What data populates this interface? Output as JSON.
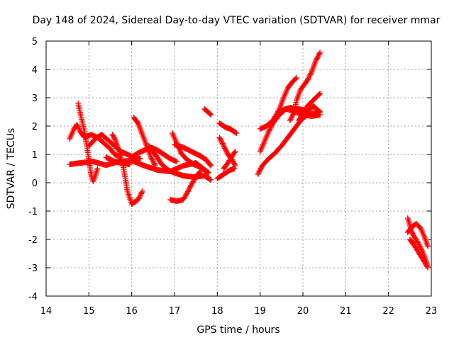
{
  "chart_data": {
    "type": "scatter",
    "title": "Day 148 of 2024, Sidereal Day-to-day VTEC variation (SDTVAR) for receiver mmar",
    "xlabel": "GPS time / hours",
    "ylabel": "SDTVAR / TECUs",
    "xlim": [
      14,
      23
    ],
    "ylim": [
      -4,
      5
    ],
    "xticks": [
      "14",
      "15",
      "16",
      "17",
      "18",
      "19",
      "20",
      "21",
      "22",
      "23"
    ],
    "yticks": [
      "-4",
      "-3",
      "-2",
      "-1",
      "0",
      "1",
      "2",
      "3",
      "4",
      "5"
    ],
    "grid": true,
    "marker": "+",
    "marker_color": "#ff0000",
    "series": [
      {
        "tracks": [
          [
            [
              14.55,
              0.65
            ],
            [
              14.8,
              0.7
            ],
            [
              15.1,
              0.75
            ],
            [
              15.4,
              0.62
            ],
            [
              15.7,
              0.75
            ],
            [
              16.0,
              0.78
            ],
            [
              16.3,
              0.6
            ],
            [
              16.6,
              0.45
            ],
            [
              16.9,
              0.4
            ],
            [
              17.2,
              0.6
            ],
            [
              17.5,
              0.7
            ],
            [
              17.8,
              0.35
            ]
          ],
          [
            [
              14.55,
              1.55
            ],
            [
              14.65,
              1.9
            ],
            [
              14.72,
              2.05
            ],
            [
              14.8,
              1.8
            ],
            [
              14.9,
              1.6
            ],
            [
              15.05,
              1.7
            ],
            [
              15.2,
              1.6
            ],
            [
              15.35,
              1.4
            ],
            [
              15.5,
              1.2
            ],
            [
              15.6,
              1.0
            ],
            [
              15.75,
              0.9
            ]
          ],
          [
            [
              14.75,
              2.8
            ],
            [
              14.82,
              2.3
            ],
            [
              14.9,
              1.8
            ],
            [
              15.0,
              0.8
            ],
            [
              15.05,
              0.3
            ],
            [
              15.1,
              0.05
            ],
            [
              15.15,
              0.25
            ],
            [
              15.2,
              0.5
            ]
          ],
          [
            [
              15.0,
              1.3
            ],
            [
              15.15,
              1.55
            ],
            [
              15.3,
              1.7
            ],
            [
              15.45,
              1.5
            ],
            [
              15.6,
              1.3
            ],
            [
              15.75,
              1.1
            ],
            [
              15.9,
              1.0
            ],
            [
              16.05,
              0.9
            ],
            [
              16.2,
              0.85
            ]
          ],
          [
            [
              15.55,
              1.7
            ],
            [
              15.62,
              1.5
            ],
            [
              15.7,
              1.15
            ],
            [
              15.8,
              0.6
            ],
            [
              15.9,
              -0.3
            ],
            [
              16.0,
              -0.75
            ],
            [
              16.15,
              -0.6
            ],
            [
              16.25,
              -0.3
            ]
          ],
          [
            [
              16.05,
              2.3
            ],
            [
              16.15,
              2.1
            ],
            [
              16.25,
              1.7
            ],
            [
              16.35,
              1.3
            ],
            [
              16.45,
              0.9
            ],
            [
              16.55,
              0.6
            ]
          ],
          [
            [
              16.0,
              0.9
            ],
            [
              16.15,
              1.05
            ],
            [
              16.3,
              1.15
            ],
            [
              16.45,
              1.25
            ],
            [
              16.6,
              1.15
            ],
            [
              16.75,
              1.0
            ],
            [
              16.9,
              0.85
            ],
            [
              17.05,
              0.75
            ]
          ],
          [
            [
              16.95,
              1.75
            ],
            [
              17.05,
              1.4
            ],
            [
              17.15,
              1.05
            ],
            [
              17.3,
              0.8
            ],
            [
              17.45,
              0.65
            ],
            [
              17.6,
              0.55
            ],
            [
              17.75,
              0.4
            ]
          ],
          [
            [
              16.9,
              -0.6
            ],
            [
              17.05,
              -0.65
            ],
            [
              17.2,
              -0.6
            ],
            [
              17.3,
              -0.35
            ],
            [
              17.4,
              -0.05
            ],
            [
              17.5,
              0.2
            ],
            [
              17.6,
              0.4
            ]
          ],
          [
            [
              17.0,
              1.35
            ],
            [
              17.2,
              1.25
            ],
            [
              17.4,
              1.1
            ],
            [
              17.6,
              0.95
            ],
            [
              17.75,
              0.8
            ],
            [
              17.85,
              0.6
            ]
          ],
          [
            [
              16.4,
              1.3
            ],
            [
              16.55,
              1.0
            ],
            [
              16.7,
              0.65
            ],
            [
              16.85,
              0.45
            ],
            [
              17.0,
              0.35
            ],
            [
              17.2,
              0.25
            ],
            [
              17.45,
              0.2
            ],
            [
              17.7,
              0.25
            ],
            [
              17.85,
              0.1
            ]
          ],
          [
            [
              15.4,
              0.9
            ],
            [
              15.6,
              0.75
            ],
            [
              15.8,
              0.68
            ],
            [
              15.95,
              0.65
            ]
          ],
          [
            [
              17.7,
              2.6
            ],
            [
              17.78,
              2.5
            ],
            [
              17.85,
              2.4
            ]
          ],
          [
            [
              18.0,
              0.15
            ],
            [
              18.15,
              0.3
            ],
            [
              18.3,
              0.45
            ],
            [
              18.4,
              0.5
            ]
          ],
          [
            [
              18.05,
              2.1
            ],
            [
              18.2,
              1.95
            ],
            [
              18.3,
              1.9
            ],
            [
              18.45,
              1.75
            ]
          ],
          [
            [
              18.05,
              1.6
            ],
            [
              18.15,
              1.3
            ],
            [
              18.25,
              1.0
            ],
            [
              18.35,
              0.8
            ],
            [
              18.42,
              0.6
            ]
          ],
          [
            [
              18.15,
              0.5
            ],
            [
              18.25,
              0.7
            ],
            [
              18.35,
              0.95
            ],
            [
              18.42,
              1.1
            ]
          ],
          [
            [
              18.95,
              0.3
            ],
            [
              19.05,
              0.6
            ],
            [
              19.2,
              0.85
            ],
            [
              19.35,
              1.05
            ],
            [
              19.5,
              1.3
            ],
            [
              19.65,
              1.6
            ],
            [
              19.8,
              1.9
            ],
            [
              19.95,
              2.2
            ],
            [
              20.1,
              2.4
            ],
            [
              20.25,
              2.45
            ],
            [
              20.4,
              2.5
            ]
          ],
          [
            [
              19.0,
              1.1
            ],
            [
              19.1,
              1.45
            ],
            [
              19.2,
              1.8
            ],
            [
              19.3,
              2.1
            ],
            [
              19.45,
              2.4
            ],
            [
              19.6,
              2.6
            ],
            [
              19.75,
              2.55
            ],
            [
              19.9,
              2.45
            ],
            [
              20.05,
              2.4
            ],
            [
              20.2,
              2.35
            ],
            [
              20.4,
              2.4
            ]
          ],
          [
            [
              19.0,
              1.9
            ],
            [
              19.15,
              2.0
            ],
            [
              19.3,
              2.2
            ],
            [
              19.45,
              2.6
            ],
            [
              19.55,
              3.0
            ],
            [
              19.65,
              3.35
            ],
            [
              19.75,
              3.55
            ],
            [
              19.85,
              3.7
            ]
          ],
          [
            [
              19.7,
              2.2
            ],
            [
              19.8,
              2.5
            ],
            [
              19.85,
              2.9
            ],
            [
              19.95,
              3.3
            ],
            [
              20.1,
              3.6
            ],
            [
              20.2,
              3.9
            ],
            [
              20.3,
              4.3
            ],
            [
              20.4,
              4.6
            ]
          ],
          [
            [
              19.5,
              2.55
            ],
            [
              19.7,
              2.65
            ],
            [
              19.9,
              2.6
            ],
            [
              20.1,
              2.55
            ],
            [
              20.25,
              2.7
            ],
            [
              20.4,
              2.5
            ]
          ],
          [
            [
              19.9,
              2.2
            ],
            [
              20.0,
              2.45
            ],
            [
              20.1,
              2.7
            ],
            [
              20.2,
              2.85
            ],
            [
              20.3,
              3.0
            ],
            [
              20.4,
              3.15
            ]
          ],
          [
            [
              22.45,
              -1.25
            ],
            [
              22.5,
              -1.5
            ],
            [
              22.55,
              -1.75
            ],
            [
              22.6,
              -1.9
            ],
            [
              22.7,
              -2.15
            ],
            [
              22.8,
              -2.45
            ],
            [
              22.9,
              -2.85
            ],
            [
              22.92,
              -3.0
            ]
          ],
          [
            [
              22.45,
              -1.75
            ],
            [
              22.55,
              -1.55
            ],
            [
              22.65,
              -1.45
            ],
            [
              22.75,
              -1.6
            ],
            [
              22.85,
              -1.95
            ],
            [
              22.92,
              -2.25
            ]
          ],
          [
            [
              22.5,
              -2.0
            ],
            [
              22.6,
              -2.2
            ],
            [
              22.7,
              -2.45
            ],
            [
              22.8,
              -2.7
            ],
            [
              22.9,
              -2.95
            ]
          ]
        ]
      }
    ]
  }
}
